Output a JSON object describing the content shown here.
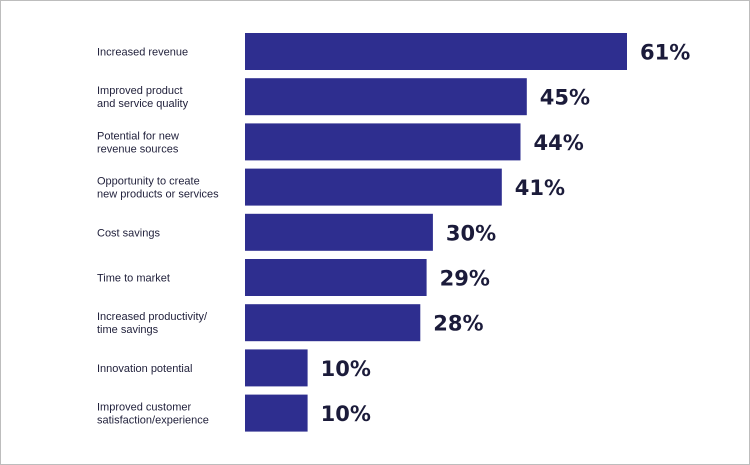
{
  "chart_data": {
    "type": "bar",
    "orientation": "horizontal",
    "categories": [
      [
        "Increased revenue"
      ],
      [
        "Improved product",
        "and service quality"
      ],
      [
        "Potential for new",
        "revenue sources"
      ],
      [
        "Opportunity to create",
        "new products or services"
      ],
      [
        "Cost savings"
      ],
      [
        "Time to market"
      ],
      [
        "Increased productivity/",
        "time savings"
      ],
      [
        "Innovation potential"
      ],
      [
        "Improved customer",
        "satisfaction/experience"
      ]
    ],
    "values": [
      61,
      45,
      44,
      41,
      30,
      29,
      28,
      10,
      10
    ],
    "value_labels": [
      "61%",
      "45%",
      "44%",
      "41%",
      "30%",
      "29%",
      "28%",
      "10%",
      "10%"
    ],
    "unit": "%",
    "title": "",
    "xlabel": "",
    "ylabel": "",
    "xlim": [
      0,
      61
    ],
    "grid": false,
    "legend": "none",
    "colors": {
      "bar": "#2e2e8f",
      "value_text": "#1b1b3a",
      "category_text": "#1f1f3a"
    }
  }
}
